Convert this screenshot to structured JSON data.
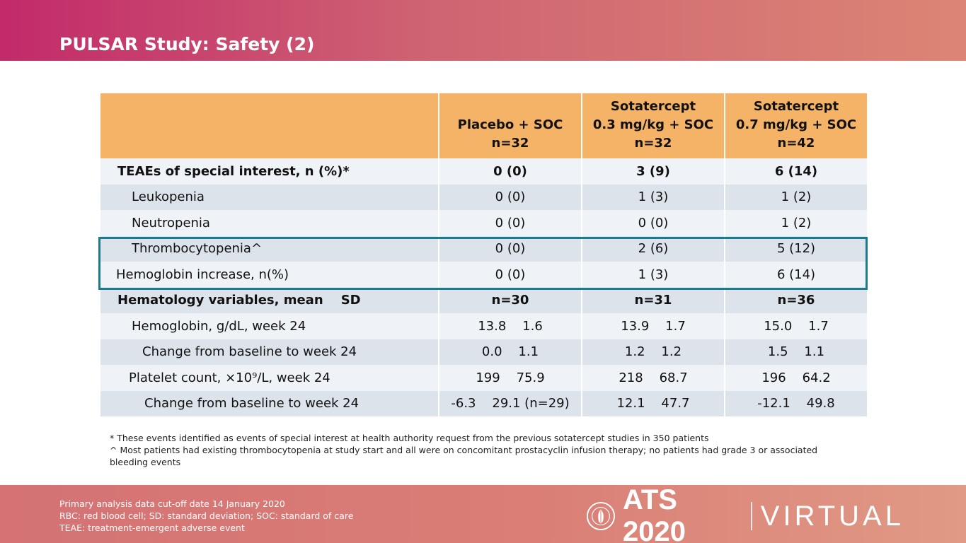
{
  "slide": {
    "title": "PULSAR Study: Safety (2)"
  },
  "table": {
    "columns": [
      {
        "line1": "",
        "line2": "Placebo + SOC",
        "line3": "n=32"
      },
      {
        "line1": "Sotatercept",
        "line2": "0.3 mg/kg + SOC",
        "line3": "n=32"
      },
      {
        "line1": "Sotatercept",
        "line2": "0.7 mg/kg + SOC",
        "line3": "n=42"
      }
    ],
    "rows": [
      {
        "label": "TEAEs of special interest, n (%)*",
        "indent": 24,
        "bold": true,
        "values": [
          "0 (0)",
          "3 (9)",
          "6 (14)"
        ]
      },
      {
        "label": "Leukopenia",
        "indent": 44,
        "bold": false,
        "values": [
          "0 (0)",
          "1 (3)",
          "1 (2)"
        ]
      },
      {
        "label": "Neutropenia",
        "indent": 44,
        "bold": false,
        "values": [
          "0 (0)",
          "0 (0)",
          "1 (2)"
        ]
      },
      {
        "label": "Thrombocytopenia^",
        "indent": 44,
        "bold": false,
        "values": [
          "0 (0)",
          "2 (6)",
          "5 (12)"
        ]
      },
      {
        "label": "Hemoglobin increase, n(%)",
        "indent": 22,
        "bold": false,
        "values": [
          "0 (0)",
          "1 (3)",
          "6 (14)"
        ]
      },
      {
        "label": "Hematology variables, mean    SD",
        "indent": 24,
        "bold": true,
        "values": [
          "n=30",
          "n=31",
          "n=36"
        ]
      },
      {
        "label": "Hemoglobin, g/dL, week 24",
        "indent": 44,
        "bold": false,
        "values": [
          "13.8    1.6",
          "13.9    1.7",
          "15.0    1.7"
        ]
      },
      {
        "label": "Change from baseline to week 24",
        "indent": 59,
        "bold": false,
        "values": [
          "0.0    1.1",
          "1.2    1.2",
          "1.5    1.1"
        ]
      },
      {
        "label": "Platelet count, ×10⁹/L, week 24",
        "indent": 40,
        "bold": false,
        "values": [
          "199    75.9",
          "218    68.7",
          "196    64.2"
        ]
      },
      {
        "label": "Change from baseline to week 24",
        "indent": 62,
        "bold": false,
        "values": [
          "-6.3    29.1 (n=29)",
          "12.1    47.7",
          "-12.1    49.8"
        ]
      }
    ]
  },
  "footnotes": [
    "* These events identified as events of special interest at health authority request from the previous sotatercept studies in 350 patients",
    "^ Most patients had existing thrombocytopenia at study start and all were on concomitant prostacyclin infusion therapy; no patients had grade 3 or associated bleeding events"
  ],
  "footer": {
    "abbreviations": [
      "Primary analysis data cut-off date 14 January 2020",
      "RBC: red blood cell; SD: standard deviation; SOC: standard of care",
      "TEAE: treatment-emergent adverse event"
    ],
    "logo_main": "ATS 2020",
    "logo_sub": "VIRTUAL"
  },
  "colors": {
    "header_accent": "#c22a6a",
    "table_header": "#f5b367",
    "row_light": "#eff2f7",
    "row_dark": "#dde3eb",
    "highlight_border": "#1c7a8f"
  },
  "icons": {
    "logo_seal": "ats-seal-icon"
  }
}
